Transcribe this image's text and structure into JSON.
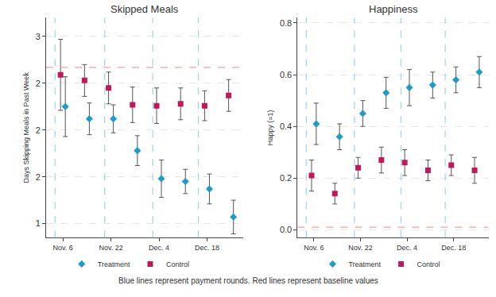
{
  "chart_data": [
    {
      "type": "scatter",
      "title": "Skipped Meals",
      "y_label": "Days Skipping Meals in Past Week",
      "categories": [
        "Nov. 6",
        null,
        "Nov. 22",
        null,
        "Dec. 4",
        null,
        "Dec. 18",
        null
      ],
      "series": [
        {
          "name": "Treatment",
          "color": "#1f9bc9",
          "marker": "diamond",
          "values": [
            2.25,
            2.12,
            2.12,
            1.78,
            1.48,
            1.45,
            1.37,
            1.07
          ],
          "errors": [
            0.32,
            0.17,
            0.15,
            0.16,
            0.2,
            0.13,
            0.16,
            0.18
          ]
        },
        {
          "name": "Control",
          "color": "#c2185b",
          "marker": "square",
          "values": [
            2.59,
            2.53,
            2.45,
            2.27,
            2.26,
            2.28,
            2.26,
            2.37
          ],
          "errors": [
            0.38,
            0.17,
            0.17,
            0.19,
            0.19,
            0.17,
            0.16,
            0.17
          ]
        }
      ],
      "payment_rounds": [
        -0.33,
        1.74,
        3.74,
        5.64
      ],
      "baseline": 2.67,
      "ylim": [
        0.85,
        3.2
      ],
      "yticks": [
        {
          "value": 1,
          "label": "1"
        },
        {
          "value": 1.5,
          "label": "2"
        },
        {
          "value": 2,
          "label": "2"
        },
        {
          "value": 2.5,
          "label": "2"
        },
        {
          "value": 3,
          "label": "3"
        }
      ],
      "grid": true,
      "legend": "bottom"
    },
    {
      "type": "scatter",
      "title": "Happiness",
      "y_label": "Happy (=1)",
      "categories": [
        "Nov. 6",
        null,
        "Nov. 22",
        null,
        "Dec. 4",
        null,
        "Dec. 18",
        null
      ],
      "series": [
        {
          "name": "Treatment",
          "color": "#1f9bc9",
          "marker": "diamond",
          "values": [
            0.41,
            0.36,
            0.45,
            0.53,
            0.55,
            0.56,
            0.58,
            0.61
          ],
          "errors": [
            0.08,
            0.05,
            0.05,
            0.06,
            0.07,
            0.05,
            0.05,
            0.06
          ]
        },
        {
          "name": "Control",
          "color": "#c2185b",
          "marker": "square",
          "values": [
            0.21,
            0.14,
            0.24,
            0.27,
            0.26,
            0.23,
            0.25,
            0.23
          ],
          "errors": [
            0.06,
            0.04,
            0.04,
            0.05,
            0.05,
            0.04,
            0.04,
            0.05
          ]
        }
      ],
      "payment_rounds": [
        -0.33,
        1.74,
        3.74,
        5.64
      ],
      "baseline": 0.01,
      "ylim": [
        -0.03,
        0.82
      ],
      "yticks": [
        {
          "value": 0,
          "label": "0.0"
        },
        0.2,
        0.4,
        0.6,
        0.8
      ],
      "grid": true,
      "legend": "bottom"
    }
  ],
  "caption": "Blue lines represent payment rounds. Red lines represent baseline values"
}
